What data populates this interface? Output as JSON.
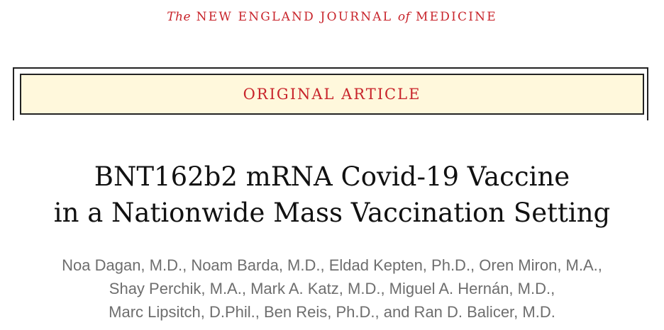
{
  "journal": {
    "the": "The",
    "name_part1": "NEW ENGLAND JOURNAL",
    "of": "of",
    "name_part2": "MEDICINE"
  },
  "article_type": "ORIGINAL ARTICLE",
  "title": {
    "line1": "BNT162b2 mRNA Covid-19 Vaccine",
    "line2": "in a Nationwide Mass Vaccination Setting"
  },
  "authors": {
    "line1": "Noa Dagan, M.D., Noam Barda, M.D., Eldad Kepten, Ph.D., Oren Miron, M.A.,",
    "line2": "Shay Perchik, M.A., Mark A. Katz, M.D., Miguel A. Hernán, M.D.,",
    "line3": "Marc Lipsitch, D.Phil., Ben Reis, Ph.D., and Ran D. Balicer, M.D."
  },
  "colors": {
    "brand_red": "#c8242b",
    "banner_bg": "#fff8dc",
    "author_gray": "#6e6e6e"
  }
}
